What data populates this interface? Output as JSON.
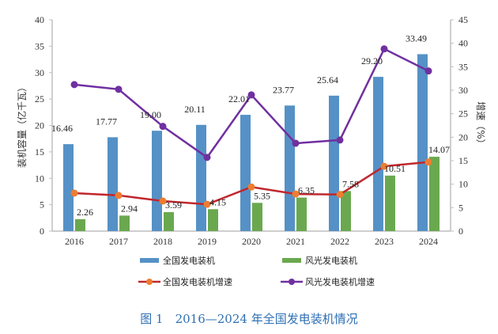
{
  "chart_data": {
    "type": "bar",
    "title": "图 1　2016—2024 年全国发电装机情况",
    "categories": [
      "2016",
      "2017",
      "2018",
      "2019",
      "2020",
      "2021",
      "2022",
      "2023",
      "2024"
    ],
    "ylabel": "装机容量（亿千瓦）",
    "ylabel_right": "增速（%）",
    "ylim": [
      0,
      40
    ],
    "ylim_right": [
      0,
      45
    ],
    "yticks": [
      0,
      5,
      10,
      15,
      20,
      25,
      30,
      35,
      40
    ],
    "yticks_right": [
      0,
      5,
      10,
      15,
      20,
      25,
      30,
      35,
      40,
      45
    ],
    "grid": false,
    "legend_placement": "bottom",
    "series": [
      {
        "name": "全国发电装机",
        "kind": "bar",
        "axis": "left",
        "color": "#5591c6",
        "values": [
          16.46,
          17.77,
          19.0,
          20.11,
          22.01,
          23.77,
          25.64,
          29.2,
          33.49
        ],
        "labels": [
          "16.46",
          "17.77",
          "19.00",
          "20.11",
          "22.01",
          "23.77",
          "25.64",
          "29.20",
          "33.49"
        ]
      },
      {
        "name": "风光发电装机",
        "kind": "bar",
        "axis": "left",
        "color": "#6aa84f",
        "values": [
          2.26,
          2.94,
          3.59,
          4.15,
          5.35,
          6.35,
          7.58,
          10.51,
          14.07
        ],
        "labels": [
          "2.26",
          "2.94",
          "3.59",
          "4.15",
          "5.35",
          "6.35",
          "7.58",
          "10.51",
          "14.07"
        ]
      },
      {
        "name": "全国发电装机增速",
        "kind": "line",
        "axis": "right",
        "color": "#c0272d",
        "marker_color": "#ed7d31",
        "values": [
          8.1,
          7.6,
          6.4,
          5.7,
          9.4,
          7.9,
          7.8,
          13.8,
          14.7
        ]
      },
      {
        "name": "风光发电装机增速",
        "kind": "line",
        "axis": "right",
        "color": "#7030a0",
        "marker_color": "#7030a0",
        "values": [
          31.2,
          30.2,
          22.3,
          15.7,
          29.0,
          18.7,
          19.4,
          38.8,
          34.1
        ]
      }
    ]
  }
}
